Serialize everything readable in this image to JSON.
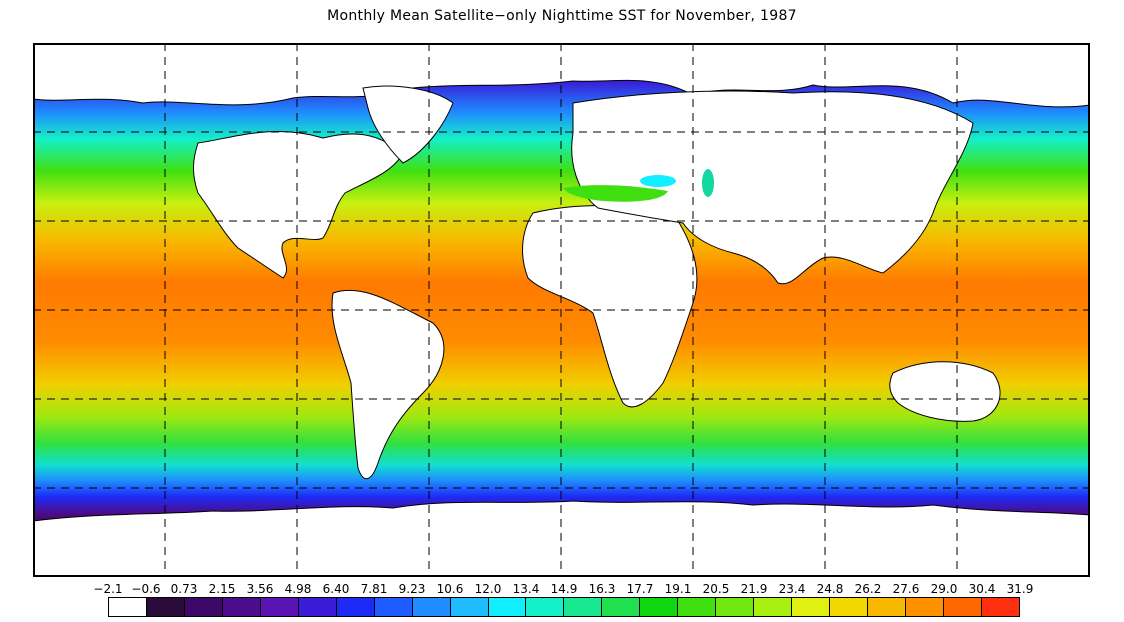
{
  "title": "Monthly Mean Satellite−only Nighttime SST for November, 1987",
  "legend": {
    "labels": [
      "−2.1",
      "−0.6",
      "0.73",
      "2.15",
      "3.56",
      "4.98",
      "6.40",
      "7.81",
      "9.23",
      "10.6",
      "12.0",
      "13.4",
      "14.9",
      "16.3",
      "17.7",
      "19.1",
      "20.5",
      "21.9",
      "23.4",
      "24.8",
      "26.2",
      "27.6",
      "29.0",
      "30.4",
      "31.9"
    ],
    "colors": [
      "#ffffff",
      "#2a0b3a",
      "#3e0868",
      "#4b0d8c",
      "#5a14b4",
      "#3b1ad8",
      "#1e2af5",
      "#1f5cff",
      "#1f8cff",
      "#1fbcff",
      "#10eeff",
      "#14f0c8",
      "#18e890",
      "#20e050",
      "#10d810",
      "#40e010",
      "#70e810",
      "#a8f010",
      "#e0f010",
      "#f0d800",
      "#f8b800",
      "#ff9000",
      "#ff6800",
      "#ff3010"
    ]
  },
  "map": {
    "land_color": "#ffffff",
    "coastline_color": "#000000",
    "grid_style": "dashed"
  }
}
